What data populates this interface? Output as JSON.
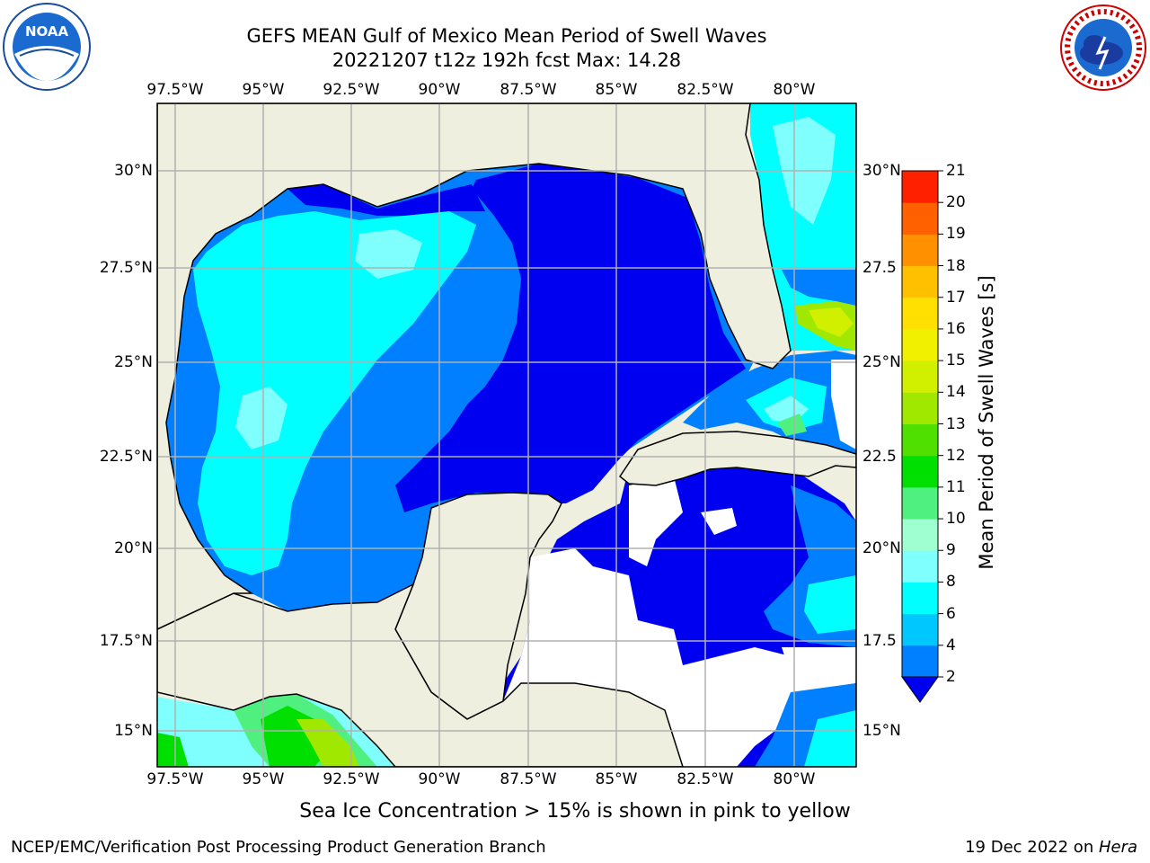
{
  "title": {
    "line1": "GEFS MEAN Gulf of Mexico Mean Period of Swell Waves",
    "line2": "20221207 t12z 192h fcst   Max: 14.28"
  },
  "logos": {
    "left": {
      "icon": "noaa-logo-icon",
      "text": "NOAA"
    },
    "right": {
      "icon": "nws-logo-icon",
      "text": "NATIONAL WEATHER SERVICE"
    }
  },
  "map": {
    "lon_labels": [
      "97.5°W",
      "95°W",
      "92.5°W",
      "90°W",
      "87.5°W",
      "85°W",
      "82.5°W",
      "80°W"
    ],
    "lat_labels_left": [
      "30°N",
      "27.5°N",
      "25°N",
      "22.5°N",
      "20°N",
      "17.5°N",
      "15°N"
    ],
    "lat_labels_right": [
      "30°N",
      "27.5",
      "25°N",
      "22.5",
      "20°N",
      "17.5",
      "15°N"
    ],
    "colors": {
      "land": "#efefdf",
      "grid": "#b0b0b0",
      "no_data": "#ffffff",
      "band_2_4": "#0000f0",
      "band_4_6": "#0080ff",
      "band_6_8": "#00ffff",
      "band_8_9": "#80ffff"
    }
  },
  "colorbar": {
    "label": "Mean Period of Swell Waves [s]",
    "ticks": [
      "2",
      "4",
      "6",
      "8",
      "9",
      "10",
      "11",
      "12",
      "13",
      "14",
      "15",
      "16",
      "17",
      "18",
      "19",
      "20",
      "21"
    ],
    "colors": [
      "#0080ff",
      "#00c8ff",
      "#00ffff",
      "#80ffff",
      "#a0ffd0",
      "#50f080",
      "#00e000",
      "#50e000",
      "#a0e800",
      "#d0f000",
      "#f0f000",
      "#ffe000",
      "#ffc000",
      "#ff9000",
      "#ff6000",
      "#ff2000"
    ],
    "extend_color": "#0000f0"
  },
  "caption": "Sea Ice Concentration > 15% is shown in pink to yellow",
  "footer": {
    "left": "NCEP/EMC/Verification Post Processing Product Generation Branch",
    "right_date": "19 Dec 2022 on ",
    "right_host": "Hera"
  }
}
